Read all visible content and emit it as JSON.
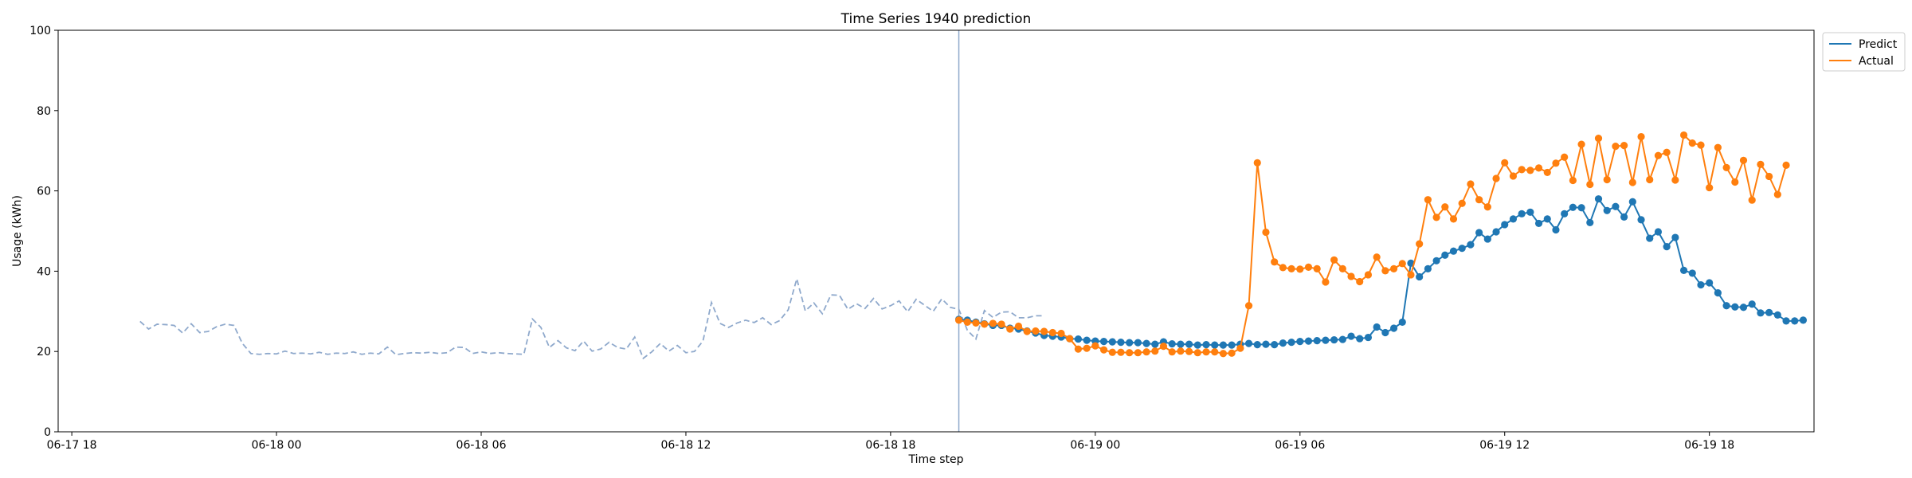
{
  "chart_data": {
    "type": "line",
    "title": "Time Series 1940 prediction",
    "xlabel": "Time step",
    "ylabel": "Usage (kWh)",
    "ylim": [
      0,
      100
    ],
    "yticks": [
      0,
      20,
      40,
      60,
      80,
      100
    ],
    "xlim": [
      "2024-06-17 17:36",
      "2024-06-19 21:04"
    ],
    "xticks": [
      {
        "t": "2024-06-17 18:00",
        "label": "06-17 18"
      },
      {
        "t": "2024-06-18 00:00",
        "label": "06-18 00"
      },
      {
        "t": "2024-06-18 06:00",
        "label": "06-18 06"
      },
      {
        "t": "2024-06-18 12:00",
        "label": "06-18 12"
      },
      {
        "t": "2024-06-18 18:00",
        "label": "06-18 18"
      },
      {
        "t": "2024-06-19 00:00",
        "label": "06-19 00"
      },
      {
        "t": "2024-06-19 06:00",
        "label": "06-19 06"
      },
      {
        "t": "2024-06-19 12:00",
        "label": "06-19 12"
      },
      {
        "t": "2024-06-19 18:00",
        "label": "06-19 18"
      }
    ],
    "grid": false,
    "legend_position": "upper-right-outside",
    "forecast_start": "2024-06-18 20:00",
    "interval_minutes": 15,
    "history": {
      "start": "2024-06-17 20:00",
      "color": "#8fa9cc",
      "style": "dashed",
      "values": [
        27.5,
        25.6,
        26.8,
        26.7,
        26.5,
        24.6,
        26.9,
        24.7,
        25.0,
        26.2,
        26.8,
        26.5,
        22.0,
        19.5,
        19.3,
        19.5,
        19.4,
        20.1,
        19.5,
        19.6,
        19.4,
        19.8,
        19.3,
        19.6,
        19.5,
        19.9,
        19.3,
        19.6,
        19.4,
        21.1,
        19.2,
        19.5,
        19.7,
        19.6,
        19.8,
        19.5,
        19.7,
        21.1,
        21.0,
        19.5,
        19.9,
        19.5,
        19.7,
        19.5,
        19.4,
        19.3,
        28.1,
        26.0,
        21.0,
        22.7,
        20.9,
        20.2,
        22.6,
        20.1,
        20.6,
        22.3,
        21.0,
        20.6,
        23.6,
        18.3,
        19.9,
        22.0,
        20.1,
        21.5,
        19.7,
        20.0,
        22.6,
        32.2,
        27.0,
        26.0,
        27.1,
        27.8,
        27.2,
        28.4,
        26.7,
        27.7,
        30.4,
        38.1,
        30.1,
        32.1,
        29.4,
        34.1,
        34.0,
        30.5,
        31.9,
        30.7,
        33.2,
        30.6,
        31.4,
        32.6,
        29.9,
        33.0,
        31.5,
        30.0,
        33.1,
        31.0,
        30.5,
        25.3,
        23.1,
        30.2,
        28.5,
        29.8,
        29.9,
        28.4,
        28.4,
        28.9,
        28.9
      ]
    },
    "series": [
      {
        "name": "Predict",
        "color": "#1f77b4",
        "values": [
          28.0,
          27.8,
          27.3,
          26.9,
          26.5,
          26.5,
          25.8,
          25.6,
          25.1,
          24.6,
          24.0,
          23.8,
          23.6,
          23.2,
          23.1,
          22.8,
          22.6,
          22.5,
          22.4,
          22.3,
          22.2,
          22.2,
          22.0,
          21.8,
          22.4,
          21.9,
          21.8,
          21.8,
          21.6,
          21.7,
          21.6,
          21.6,
          21.6,
          21.8,
          22.0,
          21.7,
          21.8,
          21.7,
          22.1,
          22.3,
          22.5,
          22.6,
          22.7,
          22.8,
          22.9,
          23.0,
          23.8,
          23.2,
          23.5,
          26.1,
          24.7,
          25.8,
          27.3,
          42.0,
          38.6,
          40.6,
          42.6,
          44.0,
          45.0,
          45.7,
          46.6,
          49.6,
          48.0,
          49.8,
          51.6,
          53.0,
          54.3,
          54.7,
          51.9,
          53.0,
          50.3,
          54.3,
          55.9,
          55.8,
          52.1,
          58.0,
          55.1,
          56.1,
          53.5,
          57.3,
          52.8,
          48.2,
          49.8,
          46.1,
          48.4,
          40.2,
          39.5,
          36.6,
          37.1,
          34.6,
          31.4,
          31.1,
          31.0,
          31.8,
          29.6,
          29.7,
          29.1,
          27.6,
          27.6,
          27.8
        ]
      },
      {
        "name": "Actual",
        "color": "#ff7f0e",
        "values": [
          27.8,
          27.3,
          27.1,
          26.8,
          27.0,
          26.8,
          25.6,
          26.3,
          25.0,
          25.1,
          25.0,
          24.7,
          24.5,
          23.2,
          20.6,
          20.8,
          21.4,
          20.4,
          19.8,
          19.8,
          19.7,
          19.7,
          19.9,
          20.1,
          21.3,
          19.9,
          20.1,
          20.0,
          19.7,
          19.9,
          19.9,
          19.5,
          19.6,
          20.8,
          31.4,
          67.0,
          49.7,
          42.3,
          40.9,
          40.6,
          40.5,
          41.0,
          40.6,
          37.3,
          42.8,
          40.6,
          38.7,
          37.4,
          39.1,
          43.5,
          40.1,
          40.6,
          41.9,
          39.1,
          46.8,
          57.8,
          53.4,
          56.0,
          53.0,
          56.9,
          61.7,
          57.8,
          56.0,
          63.1,
          67.0,
          63.7,
          65.3,
          65.1,
          65.7,
          64.6,
          66.9,
          68.4,
          62.6,
          71.6,
          61.6,
          73.1,
          62.8,
          71.1,
          71.3,
          62.1,
          73.5,
          62.8,
          68.8,
          69.6,
          62.7,
          73.9,
          71.9,
          71.4,
          60.8,
          70.8,
          65.8,
          62.2,
          67.6,
          57.7,
          66.6,
          63.6,
          59.1,
          66.4
        ]
      }
    ]
  }
}
